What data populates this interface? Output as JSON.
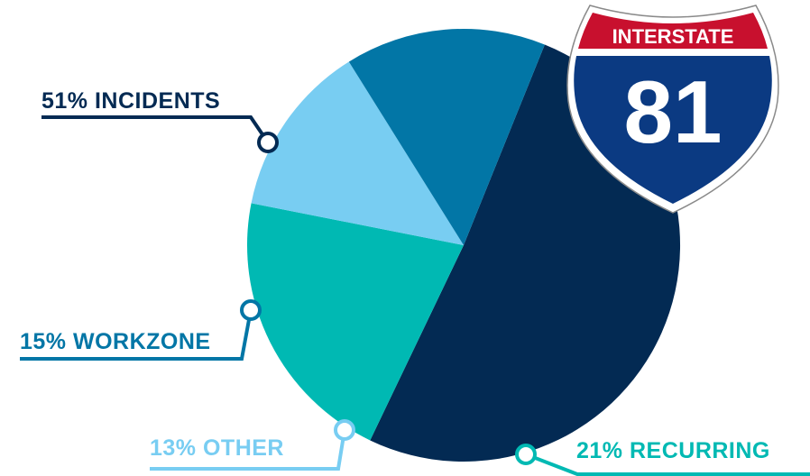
{
  "chart_data": {
    "type": "pie",
    "title": "",
    "slices": [
      {
        "label": "INCIDENTS",
        "value": 51,
        "color": "#032a53"
      },
      {
        "label": "RECURRING",
        "value": 21,
        "color": "#00b9b3"
      },
      {
        "label": "OTHER",
        "value": 13,
        "color": "#78cdf2"
      },
      {
        "label": "WORKZONE",
        "value": 15,
        "color": "#0276a6"
      }
    ],
    "legend": "none",
    "data_labels": [
      "51% INCIDENTS",
      "21% RECURRING",
      "13% OTHER",
      "15% WORKZONE"
    ]
  },
  "shield": {
    "top_text": "INTERSTATE",
    "number": "81",
    "colors": {
      "top": "#c8102e",
      "bottom": "#0b3a82",
      "border": "#ffffff"
    }
  }
}
